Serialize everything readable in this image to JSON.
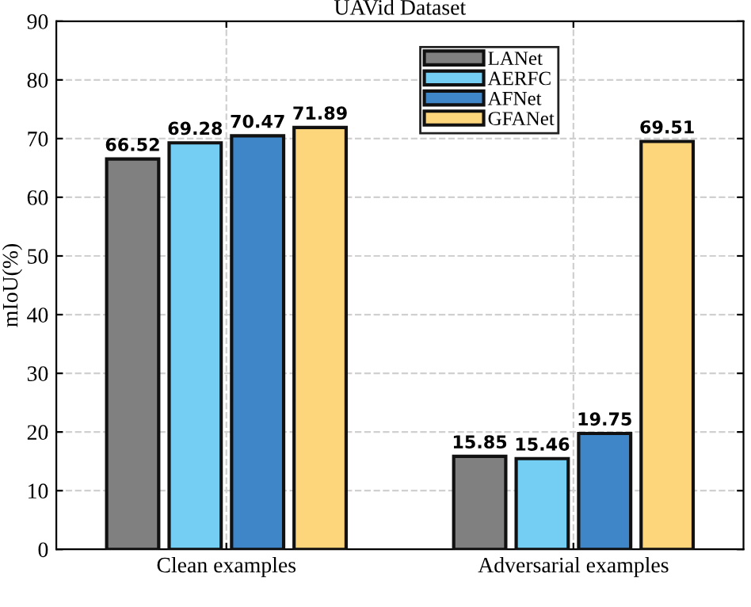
{
  "chart_data": {
    "type": "bar",
    "title": "UAVid Dataset",
    "ylabel": "mIoU(%)",
    "categories": [
      "Clean examples",
      "Adversarial examples"
    ],
    "series": [
      {
        "name": "LANet",
        "color": "#808080",
        "values": [
          66.52,
          15.85
        ]
      },
      {
        "name": "AERFC",
        "color": "#74cdf3",
        "values": [
          69.28,
          15.46
        ]
      },
      {
        "name": "AFNet",
        "color": "#3f86c8",
        "values": [
          70.47,
          19.75
        ]
      },
      {
        "name": "GFANet",
        "color": "#fdd57a",
        "values": [
          71.89,
          69.51
        ]
      }
    ],
    "ylim": [
      0,
      90
    ],
    "yticks": [
      0,
      10,
      20,
      30,
      40,
      50,
      60,
      70,
      80,
      90
    ],
    "grid": true,
    "legend": "top right",
    "data_labels": true
  }
}
